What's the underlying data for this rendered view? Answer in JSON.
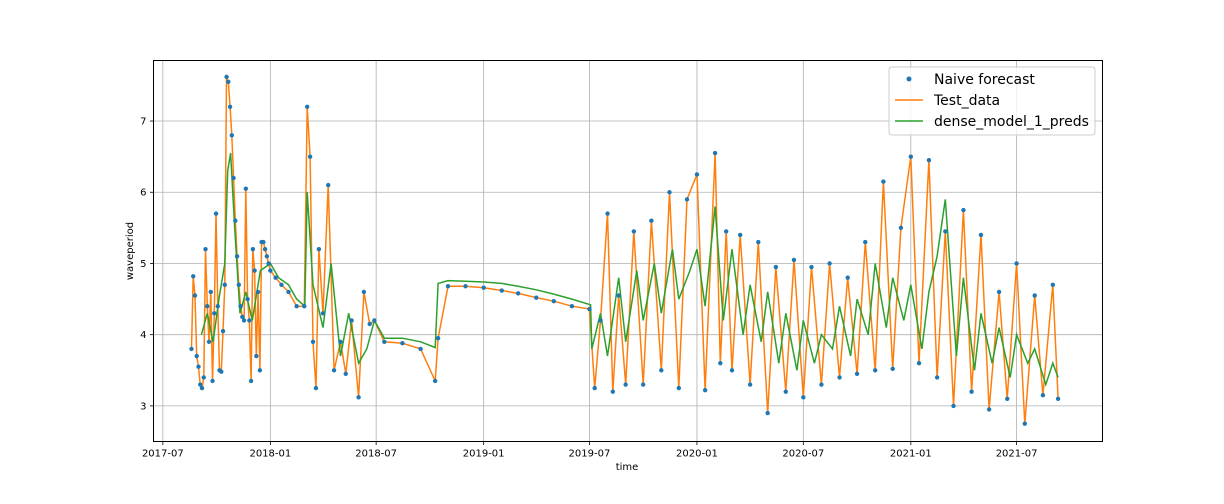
{
  "chart_data": {
    "type": "line",
    "title": "",
    "xlabel": "time",
    "ylabel": "waveperiod",
    "ylim": [
      2.5,
      7.85
    ],
    "xlim": [
      "2017-06-15",
      "2021-11-25"
    ],
    "grid": true,
    "legend_position": "top-right",
    "x_ticks": [
      "2017-07",
      "2018-01",
      "2018-07",
      "2019-01",
      "2019-07",
      "2020-01",
      "2020-07",
      "2021-01",
      "2021-07"
    ],
    "y_ticks": [
      3,
      4,
      5,
      6,
      7
    ],
    "series": [
      {
        "name": "Naive forecast",
        "style": "markers",
        "color": "#1f77b4",
        "x": [
          "2017-08-19",
          "2017-08-22",
          "2017-08-25",
          "2017-08-28",
          "2017-08-31",
          "2017-09-03",
          "2017-09-06",
          "2017-09-09",
          "2017-09-12",
          "2017-09-15",
          "2017-09-18",
          "2017-09-21",
          "2017-09-24",
          "2017-09-27",
          "2017-09-30",
          "2017-10-03",
          "2017-10-06",
          "2017-10-09",
          "2017-10-12",
          "2017-10-15",
          "2017-10-18",
          "2017-10-21",
          "2017-10-24",
          "2017-10-27",
          "2017-10-30",
          "2017-11-02",
          "2017-11-05",
          "2017-11-08",
          "2017-11-11",
          "2017-11-14",
          "2017-11-17",
          "2017-11-20",
          "2017-11-23",
          "2017-11-26",
          "2017-11-29",
          "2017-12-02",
          "2017-12-05",
          "2017-12-08",
          "2017-12-11",
          "2017-12-14",
          "2017-12-17",
          "2017-12-20",
          "2017-12-23",
          "2017-12-26",
          "2017-12-29",
          "2018-01-01",
          "2018-01-10",
          "2018-01-20",
          "2018-02-01",
          "2018-02-15",
          "2018-02-28",
          "2018-03-05",
          "2018-03-10",
          "2018-03-15",
          "2018-03-20",
          "2018-03-25",
          "2018-04-01",
          "2018-04-10",
          "2018-04-20",
          "2018-05-01",
          "2018-05-10",
          "2018-05-20",
          "2018-06-01",
          "2018-06-10",
          "2018-06-20",
          "2018-06-28",
          "2018-07-15",
          "2018-08-15",
          "2018-09-15",
          "2018-10-10",
          "2018-10-15",
          "2018-11-01",
          "2018-12-01",
          "2019-01-01",
          "2019-02-01",
          "2019-03-01",
          "2019-04-01",
          "2019-05-01",
          "2019-06-01",
          "2019-07-01",
          "2019-07-10",
          "2019-07-20",
          "2019-08-01",
          "2019-08-10",
          "2019-08-20",
          "2019-09-01",
          "2019-09-15",
          "2019-10-01",
          "2019-10-15",
          "2019-11-01",
          "2019-11-15",
          "2019-12-01",
          "2019-12-15",
          "2020-01-01",
          "2020-01-15",
          "2020-02-01",
          "2020-02-10",
          "2020-02-20",
          "2020-03-01",
          "2020-03-15",
          "2020-04-01",
          "2020-04-15",
          "2020-05-01",
          "2020-05-15",
          "2020-06-01",
          "2020-06-15",
          "2020-07-01",
          "2020-07-15",
          "2020-08-01",
          "2020-08-15",
          "2020-09-01",
          "2020-09-15",
          "2020-10-01",
          "2020-10-15",
          "2020-11-01",
          "2020-11-15",
          "2020-12-01",
          "2020-12-15",
          "2021-01-01",
          "2021-01-15",
          "2021-02-01",
          "2021-02-15",
          "2021-03-01",
          "2021-03-15",
          "2021-04-01",
          "2021-04-15",
          "2021-05-01",
          "2021-05-15",
          "2021-06-01",
          "2021-06-15",
          "2021-07-01",
          "2021-07-15",
          "2021-08-01",
          "2021-08-15",
          "2021-09-01",
          "2021-09-10"
        ],
        "values": [
          3.8,
          4.82,
          4.55,
          3.7,
          3.55,
          3.3,
          3.25,
          3.4,
          5.2,
          4.4,
          3.9,
          4.6,
          3.35,
          4.3,
          5.7,
          4.4,
          3.5,
          3.48,
          4.05,
          4.7,
          7.62,
          7.55,
          7.2,
          6.8,
          6.2,
          5.6,
          5.1,
          4.7,
          4.4,
          4.25,
          4.2,
          6.05,
          4.5,
          4.2,
          3.35,
          5.2,
          4.9,
          3.7,
          4.6,
          3.5,
          5.3,
          5.3,
          5.2,
          5.1,
          5.0,
          4.9,
          4.8,
          4.7,
          4.6,
          4.4,
          4.4,
          7.2,
          6.5,
          3.9,
          3.25,
          5.2,
          4.3,
          6.1,
          3.5,
          3.9,
          3.45,
          4.2,
          3.12,
          4.6,
          4.15,
          4.2,
          3.9,
          3.88,
          3.8,
          3.35,
          3.95,
          4.68,
          4.68,
          4.66,
          4.62,
          4.58,
          4.52,
          4.47,
          4.4,
          4.36,
          3.25,
          4.2,
          5.7,
          3.2,
          4.55,
          3.3,
          5.45,
          3.3,
          5.6,
          3.5,
          6.0,
          3.25,
          5.9,
          6.25,
          3.22,
          6.55,
          3.6,
          5.45,
          3.5,
          5.4,
          3.3,
          5.3,
          2.9,
          4.95,
          3.2,
          5.05,
          3.12,
          4.95,
          3.3,
          5.0,
          3.4,
          4.8,
          3.45,
          5.3,
          3.5,
          6.15,
          3.52,
          5.5,
          6.5,
          3.6,
          6.45,
          3.4,
          5.45,
          3.0,
          5.75,
          3.2,
          5.4,
          2.95,
          4.6,
          3.1,
          5.0,
          2.75,
          4.55,
          3.15,
          4.7,
          3.1
        ]
      },
      {
        "name": "Test_data",
        "style": "line",
        "color": "#ff7f0e"
      },
      {
        "name": "dense_model_1_preds",
        "style": "line",
        "color": "#2ca02c",
        "x": [
          "2017-09-05",
          "2017-09-15",
          "2017-09-25",
          "2017-10-05",
          "2017-10-15",
          "2017-10-20",
          "2017-10-25",
          "2017-11-01",
          "2017-11-10",
          "2017-11-20",
          "2017-12-01",
          "2017-12-15",
          "2018-01-01",
          "2018-01-15",
          "2018-02-01",
          "2018-02-15",
          "2018-03-01",
          "2018-03-05",
          "2018-03-15",
          "2018-04-01",
          "2018-04-15",
          "2018-05-01",
          "2018-05-15",
          "2018-06-01",
          "2018-06-15",
          "2018-06-28",
          "2018-07-15",
          "2018-08-15",
          "2018-09-15",
          "2018-10-10",
          "2018-10-15",
          "2018-11-01",
          "2018-12-01",
          "2019-01-01",
          "2019-02-01",
          "2019-03-01",
          "2019-04-01",
          "2019-05-01",
          "2019-06-01",
          "2019-07-03",
          "2019-07-05",
          "2019-07-20",
          "2019-08-01",
          "2019-08-20",
          "2019-09-01",
          "2019-09-20",
          "2019-10-01",
          "2019-10-20",
          "2019-11-01",
          "2019-11-20",
          "2019-12-01",
          "2019-12-20",
          "2020-01-01",
          "2020-01-15",
          "2020-02-01",
          "2020-02-15",
          "2020-03-01",
          "2020-03-20",
          "2020-04-01",
          "2020-04-20",
          "2020-05-01",
          "2020-05-20",
          "2020-06-01",
          "2020-06-20",
          "2020-07-01",
          "2020-07-20",
          "2020-08-01",
          "2020-08-20",
          "2020-09-01",
          "2020-09-20",
          "2020-10-01",
          "2020-10-20",
          "2020-11-01",
          "2020-11-20",
          "2020-12-01",
          "2020-12-20",
          "2021-01-01",
          "2021-01-20",
          "2021-02-01",
          "2021-02-15",
          "2021-03-01",
          "2021-03-20",
          "2021-04-01",
          "2021-04-20",
          "2021-05-01",
          "2021-05-20",
          "2021-06-01",
          "2021-06-20",
          "2021-07-01",
          "2021-07-20",
          "2021-08-01",
          "2021-08-20",
          "2021-09-01",
          "2021-09-10"
        ],
        "values": [
          4.0,
          4.3,
          3.9,
          4.5,
          5.0,
          6.3,
          6.55,
          5.5,
          4.3,
          4.6,
          4.2,
          4.9,
          5.0,
          4.8,
          4.7,
          4.5,
          4.4,
          6.0,
          4.7,
          4.1,
          5.0,
          3.7,
          4.3,
          3.6,
          3.8,
          4.2,
          3.95,
          3.95,
          3.9,
          3.82,
          4.72,
          4.76,
          4.75,
          4.74,
          4.72,
          4.68,
          4.63,
          4.57,
          4.5,
          4.42,
          3.8,
          4.3,
          3.7,
          4.8,
          3.9,
          4.9,
          4.2,
          5.0,
          4.3,
          5.2,
          4.5,
          4.9,
          5.2,
          4.4,
          5.8,
          4.2,
          5.2,
          4.0,
          4.7,
          3.9,
          4.6,
          3.6,
          4.3,
          3.5,
          4.2,
          3.6,
          4.0,
          3.8,
          4.4,
          3.7,
          4.5,
          4.0,
          5.0,
          4.1,
          4.8,
          4.2,
          4.7,
          3.8,
          4.6,
          5.1,
          5.9,
          3.7,
          4.8,
          3.5,
          4.3,
          3.6,
          4.1,
          3.4,
          4.0,
          3.6,
          3.8,
          3.3,
          3.6,
          3.4
        ]
      }
    ]
  }
}
